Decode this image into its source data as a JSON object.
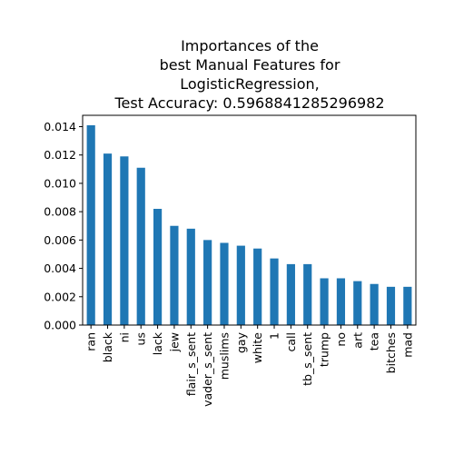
{
  "chart_data": {
    "type": "bar",
    "title_lines": [
      "Importances of the",
      "best Manual Features for",
      "LogisticRegression,",
      "Test Accuracy: 0.5968841285296982"
    ],
    "xlabel": "",
    "ylabel": "",
    "categories": [
      "ran",
      "black",
      "ni",
      "us",
      "lack",
      "jew",
      "flair_s_sent",
      "vader_s_sent",
      "muslims",
      "gay",
      "white",
      "1",
      "call",
      "tb_s_sent",
      "trump",
      "no",
      "art",
      "tea",
      "bitches",
      "mad"
    ],
    "values": [
      0.0141,
      0.0121,
      0.0119,
      0.0111,
      0.0082,
      0.007,
      0.0068,
      0.006,
      0.0058,
      0.0056,
      0.0054,
      0.0047,
      0.0043,
      0.0043,
      0.0033,
      0.0033,
      0.0031,
      0.0029,
      0.0027,
      0.0027
    ],
    "yticks": [
      "0.000",
      "0.002",
      "0.004",
      "0.006",
      "0.008",
      "0.010",
      "0.012",
      "0.014"
    ],
    "ylim": [
      0,
      0.0148
    ],
    "bar_color": "#1f77b4",
    "grid": false,
    "legend": "none"
  }
}
